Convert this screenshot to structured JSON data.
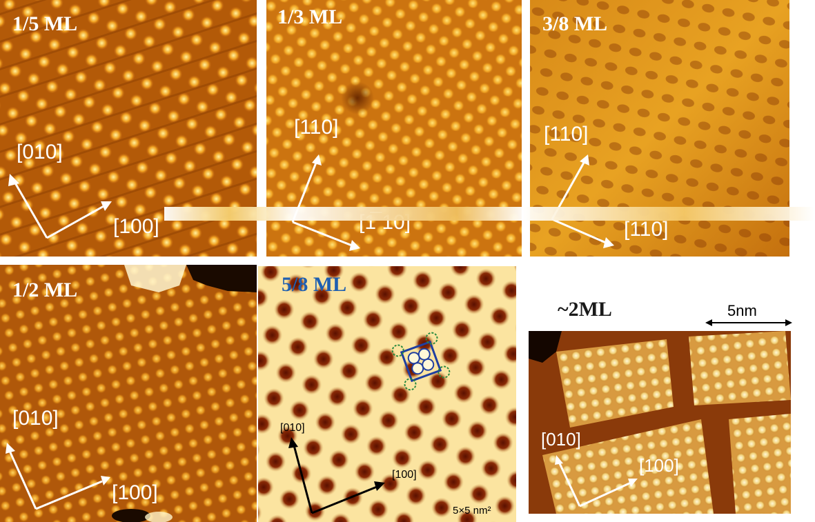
{
  "panels": [
    {
      "id": "p1",
      "title": "1/5 ML",
      "dirs": [
        "[010]",
        "[100]"
      ]
    },
    {
      "id": "p2",
      "title": "1/3 ML",
      "dirs": [
        "[110]",
        "[1̅ 10]"
      ]
    },
    {
      "id": "p3",
      "title": "3/8 ML",
      "dirs": [
        "[110]",
        "[110]"
      ]
    },
    {
      "id": "p4",
      "title": "1/2 ML",
      "dirs": [
        "[010]",
        "[100]"
      ]
    },
    {
      "id": "p5",
      "title": "5/8 ML",
      "dirs": [
        "[010]",
        "[100]"
      ],
      "scan_size": "5×5 nm²"
    },
    {
      "id": "p6",
      "title": "~2ML",
      "dirs": [
        "[010]",
        "[100]"
      ],
      "scale_bar": "5nm"
    }
  ],
  "colors": {
    "dark": "#5a1e00",
    "mid": "#c46a0a",
    "bright": "#ffd24a",
    "title_white": "#ffffff",
    "title_blue": "#1f5fb0",
    "title_black": "#1a1a1a"
  }
}
